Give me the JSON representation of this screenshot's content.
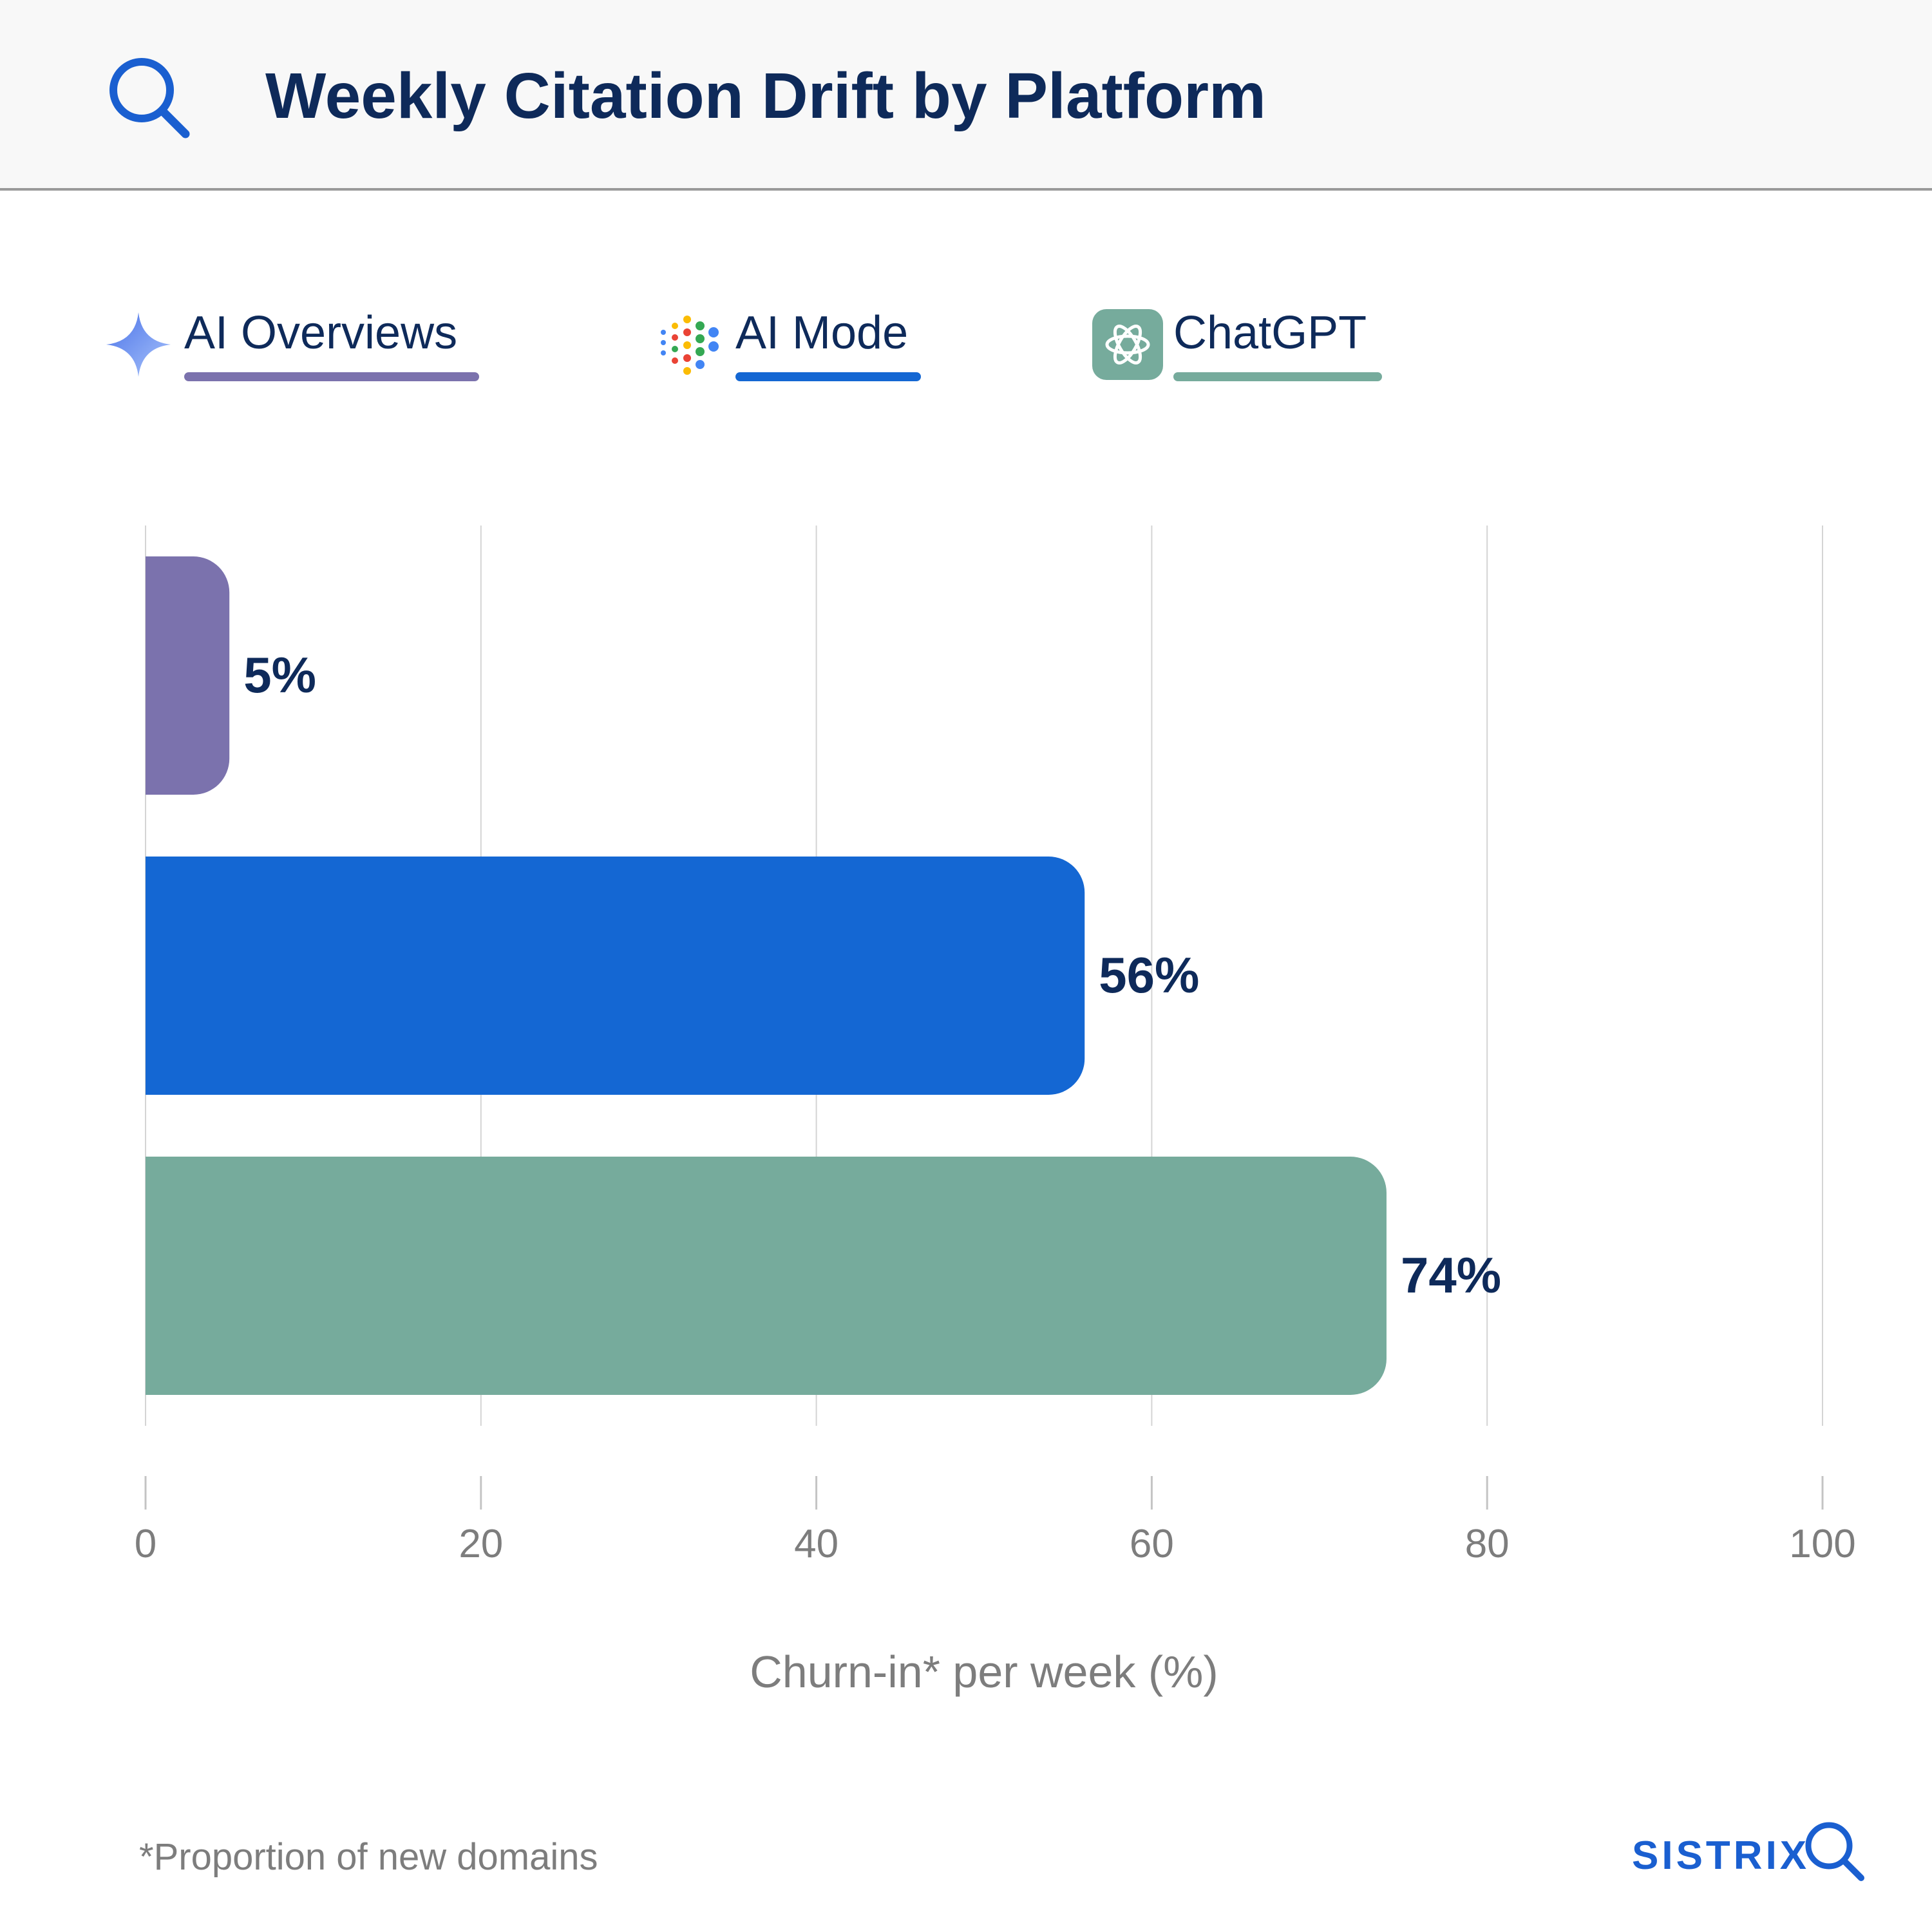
{
  "header": {
    "title": "Weekly Citation Drift by Platform",
    "icon": "search-icon"
  },
  "legend": [
    {
      "label": "AI Overviews",
      "color": "#7b72ad",
      "icon": "sparkle-icon"
    },
    {
      "label": "AI Mode",
      "color": "#1467d3",
      "icon": "dots-icon"
    },
    {
      "label": "ChatGPT",
      "color": "#76ab9c",
      "icon": "chatgpt-logo-icon"
    }
  ],
  "chart_data": {
    "type": "bar",
    "orientation": "horizontal",
    "categories": [
      "AI Overviews",
      "AI Mode",
      "ChatGPT"
    ],
    "values": [
      5,
      56,
      74
    ],
    "data_labels": [
      "5%",
      "56%",
      "74%"
    ],
    "colors": [
      "#7b72ad",
      "#1467d3",
      "#76ab9c"
    ],
    "xlabel": "Churn-in* per week (%)",
    "xlim": [
      0,
      100
    ],
    "xticks": [
      0,
      20,
      40,
      60,
      80,
      100
    ],
    "grid": true
  },
  "footer": {
    "footnote": "*Proportion of new domains",
    "brand": "SISTRIX"
  }
}
